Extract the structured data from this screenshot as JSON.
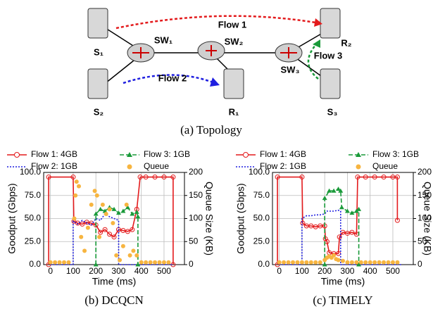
{
  "topology": {
    "nodes": [
      "S₁",
      "S₂",
      "SW₁",
      "SW₂",
      "SW₃",
      "R₁",
      "R₂",
      "S₃"
    ],
    "flows": [
      "Flow 1",
      "Flow 2",
      "Flow 3"
    ],
    "caption": "(a) Topology"
  },
  "chart_data": [
    {
      "type": "line",
      "caption": "(b) DCQCN",
      "x_label": "Time (ms)",
      "y_label": "Goodput (Gbps)",
      "y2_label": "Queue Size (KB)",
      "xlim": [
        -30,
        590
      ],
      "xticks": [
        0,
        100,
        200,
        300,
        400,
        500
      ],
      "ylim": [
        0,
        100
      ],
      "yticks": [
        {
          "value": 0,
          "label": "0.0"
        },
        {
          "value": 25,
          "label": "25.0"
        },
        {
          "value": 50,
          "label": "50.0"
        },
        {
          "value": 75,
          "label": "75.0"
        },
        {
          "value": 100,
          "label": "100.0"
        }
      ],
      "y2lim": [
        0,
        200
      ],
      "y2ticks": [
        0,
        50,
        100,
        150,
        200
      ],
      "grid": true,
      "series": [
        {
          "name": "Flow 1: 4GB",
          "color": "#e31a1c",
          "dash": "solid",
          "marker": "circle",
          "x": [
            -8,
            -8,
            100,
            103,
            120,
            140,
            160,
            180,
            200,
            220,
            240,
            260,
            280,
            300,
            320,
            340,
            360,
            380,
            395,
            420,
            460,
            500,
            540,
            540
          ],
          "values": [
            0,
            95,
            95,
            47,
            45,
            44,
            46,
            45,
            43,
            35,
            38,
            33,
            30,
            38,
            37,
            36,
            38,
            60,
            95,
            95,
            95,
            95,
            95,
            0
          ]
        },
        {
          "name": "Flow 2: 1GB",
          "color": "#1f1fe0",
          "dash": "dotted",
          "marker": "none",
          "x": [
            0,
            100,
            100,
            120,
            140,
            160,
            180,
            200,
            220,
            240,
            260,
            280,
            300,
            300,
            540
          ],
          "values": [
            0,
            0,
            47,
            44,
            48,
            45,
            43,
            50,
            48,
            55,
            52,
            50,
            48,
            0,
            0
          ]
        },
        {
          "name": "Flow 3: 1GB",
          "color": "#1a9a3a",
          "dash": "dashed",
          "marker": "triangle",
          "x": [
            200,
            200,
            220,
            240,
            260,
            280,
            300,
            320,
            340,
            360,
            380,
            385,
            385
          ],
          "values": [
            0,
            55,
            60,
            58,
            62,
            60,
            56,
            58,
            62,
            55,
            57,
            52,
            0
          ]
        },
        {
          "name": "Queue",
          "color": "#f7b540",
          "type": "scatter",
          "axis": "y2",
          "x": [
            0,
            20,
            40,
            60,
            80,
            105,
            110,
            115,
            125,
            135,
            150,
            165,
            180,
            195,
            205,
            215,
            230,
            245,
            260,
            275,
            290,
            305,
            320,
            335,
            350,
            365,
            380,
            400,
            420,
            440,
            460,
            480,
            500,
            520
          ],
          "values": [
            5,
            5,
            5,
            5,
            5,
            100,
            150,
            180,
            170,
            60,
            30,
            80,
            130,
            160,
            150,
            60,
            130,
            110,
            120,
            90,
            20,
            10,
            40,
            130,
            20,
            30,
            20,
            5,
            5,
            5,
            5,
            5,
            5,
            5
          ]
        }
      ]
    },
    {
      "type": "line",
      "caption": "(c) TIMELY",
      "x_label": "Time (ms)",
      "y_label": "Goodput (Gbps)",
      "y2_label": "Queue Size (KB)",
      "xlim": [
        -30,
        590
      ],
      "xticks": [
        0,
        100,
        200,
        300,
        400,
        500
      ],
      "ylim": [
        0,
        100
      ],
      "yticks": [
        {
          "value": 0,
          "label": "0.0"
        },
        {
          "value": 25,
          "label": "25.0"
        },
        {
          "value": 50,
          "label": "50.0"
        },
        {
          "value": 75,
          "label": "75.0"
        },
        {
          "value": 100,
          "label": "100.0"
        }
      ],
      "y2lim": [
        0,
        200
      ],
      "y2ticks": [
        0,
        50,
        100,
        150,
        200
      ],
      "grid": true,
      "series": [
        {
          "name": "Flow 1: 4GB",
          "color": "#e31a1c",
          "dash": "solid",
          "marker": "circle",
          "x": [
            -8,
            -8,
            100,
            103,
            120,
            140,
            160,
            180,
            200,
            203,
            210,
            220,
            240,
            260,
            265,
            280,
            300,
            320,
            340,
            345,
            380,
            420,
            460,
            500,
            520,
            520
          ],
          "values": [
            0,
            95,
            95,
            45,
            42,
            42,
            41,
            42,
            42,
            28,
            25,
            13,
            12,
            12,
            30,
            35,
            34,
            35,
            33,
            95,
            95,
            95,
            95,
            95,
            95,
            48
          ]
        },
        {
          "name": "Flow 2: 1GB",
          "color": "#1f1fe0",
          "dash": "dotted",
          "marker": "none",
          "x": [
            0,
            100,
            100,
            120,
            140,
            160,
            180,
            200,
            210,
            220,
            240,
            260,
            270,
            270,
            540
          ],
          "values": [
            0,
            0,
            50,
            53,
            53,
            54,
            54,
            55,
            58,
            58,
            58,
            59,
            58,
            0,
            0
          ]
        },
        {
          "name": "Flow 3: 1GB",
          "color": "#1a9a3a",
          "dash": "dashed",
          "marker": "triangle",
          "x": [
            200,
            200,
            220,
            240,
            260,
            270,
            275,
            300,
            320,
            340,
            350,
            350
          ],
          "values": [
            0,
            72,
            80,
            80,
            82,
            80,
            62,
            58,
            56,
            58,
            60,
            0
          ]
        },
        {
          "name": "Queue",
          "color": "#f7b540",
          "type": "scatter",
          "axis": "y2",
          "x": [
            0,
            20,
            40,
            60,
            80,
            100,
            120,
            140,
            160,
            180,
            200,
            210,
            220,
            230,
            240,
            250,
            260,
            280,
            300,
            320,
            340,
            360,
            380,
            400,
            420,
            440,
            460,
            480,
            500,
            520
          ],
          "values": [
            5,
            5,
            5,
            5,
            5,
            5,
            5,
            5,
            5,
            5,
            10,
            15,
            18,
            15,
            20,
            12,
            10,
            8,
            5,
            5,
            5,
            5,
            5,
            5,
            5,
            5,
            5,
            5,
            5,
            5
          ]
        }
      ]
    }
  ]
}
